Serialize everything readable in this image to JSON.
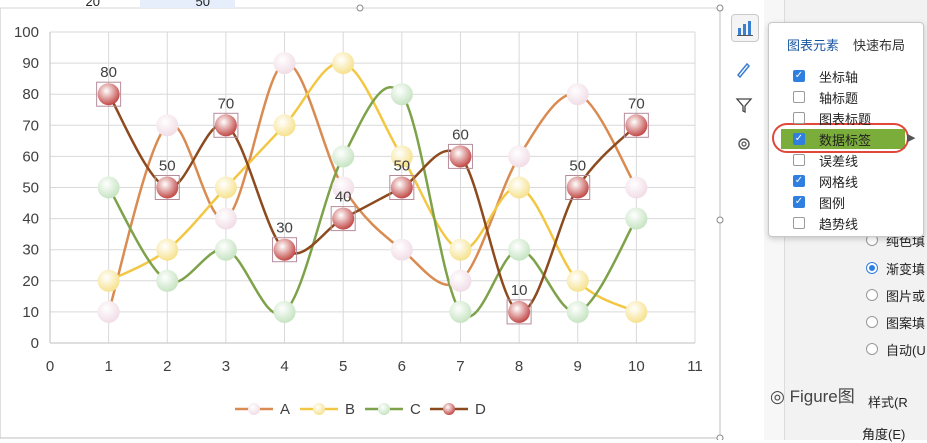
{
  "top_cells": {
    "left_value": "20",
    "right_value": "50"
  },
  "chart_data": {
    "type": "line",
    "x": [
      1,
      2,
      3,
      4,
      5,
      6,
      7,
      8,
      9,
      10
    ],
    "xlim": [
      0,
      11
    ],
    "ylim": [
      0,
      100
    ],
    "x_ticks": [
      "0",
      "1",
      "2",
      "3",
      "4",
      "5",
      "6",
      "7",
      "8",
      "9",
      "10",
      "11"
    ],
    "y_ticks": [
      "0",
      "10",
      "20",
      "30",
      "40",
      "50",
      "60",
      "70",
      "80",
      "90",
      "100"
    ],
    "grid": true,
    "smooth": true,
    "legend_position": "bottom",
    "series": [
      {
        "name": "A",
        "values": [
          10,
          70,
          40,
          90,
          50,
          30,
          20,
          60,
          80,
          50
        ],
        "line_color": "#d98b52",
        "marker_color": "#f1dde6"
      },
      {
        "name": "B",
        "values": [
          20,
          30,
          50,
          70,
          90,
          60,
          30,
          50,
          20,
          10
        ],
        "line_color": "#f2c743",
        "marker_color": "#f6e28e"
      },
      {
        "name": "C",
        "values": [
          50,
          20,
          30,
          10,
          60,
          80,
          10,
          30,
          10,
          40
        ],
        "line_color": "#7ea24a",
        "marker_color": "#c6e4c2"
      },
      {
        "name": "D",
        "values": [
          80,
          50,
          70,
          30,
          40,
          50,
          60,
          10,
          50,
          70
        ],
        "line_color": "#8c4a1e",
        "marker_color": "#c24a48"
      }
    ],
    "data_labels": [
      "80",
      "50",
      "70",
      "30",
      "40",
      "50",
      "60",
      "10",
      "50",
      "70"
    ]
  },
  "popup": {
    "tab_elements": "图表元素",
    "tab_layout": "快速布局",
    "items": [
      {
        "label": "坐标轴",
        "checked": true
      },
      {
        "label": "轴标题",
        "checked": false
      },
      {
        "label": "图表标题",
        "checked": false
      },
      {
        "label": "数据标签",
        "checked": true
      },
      {
        "label": "误差线",
        "checked": false
      },
      {
        "label": "网格线",
        "checked": true
      },
      {
        "label": "图例",
        "checked": true
      },
      {
        "label": "趋势线",
        "checked": false
      }
    ]
  },
  "side_buttons": [
    "chart-elements-icon",
    "brush-icon",
    "filter-icon",
    "gear-icon"
  ],
  "panel": {
    "radios": [
      {
        "label": "纯色填",
        "selected": false
      },
      {
        "label": "渐变填",
        "selected": true
      },
      {
        "label": "图片或",
        "selected": false
      },
      {
        "label": "图案填",
        "selected": false
      },
      {
        "label": "自动(U",
        "selected": false
      }
    ],
    "partial_label": "样式(R",
    "angle_label": "角度(E)"
  },
  "watermark": "Figure图"
}
